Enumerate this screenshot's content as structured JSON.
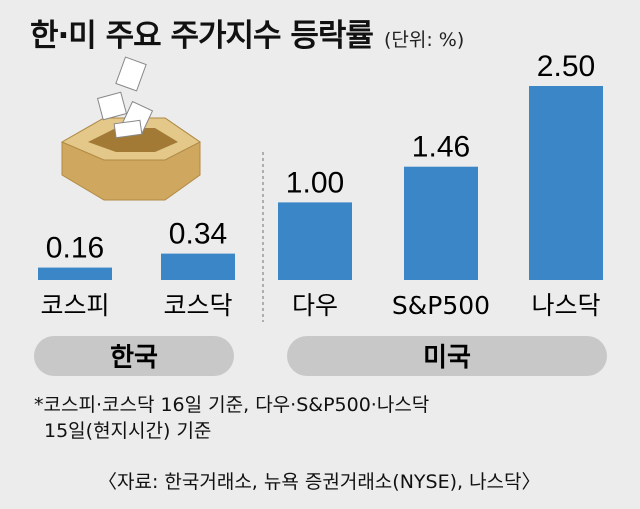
{
  "header": {
    "title": "한·미 주요 주가지수 등락률",
    "unit": "(단위: %)"
  },
  "chart_data": {
    "type": "bar",
    "categories": [
      "코스피",
      "코스닥",
      "다우",
      "S&P500",
      "나스닥"
    ],
    "values": [
      0.16,
      0.34,
      1.0,
      1.46,
      2.5
    ],
    "value_labels": [
      "0.16",
      "0.34",
      "1.00",
      "1.46",
      "2.50"
    ],
    "groups": [
      {
        "label": "한국",
        "categories": [
          "코스피",
          "코스닥"
        ]
      },
      {
        "label": "미국",
        "categories": [
          "다우",
          "S&P500",
          "나스닥"
        ]
      }
    ],
    "title": "한·미 주요 주가지수 등락률",
    "ylim": [
      0,
      2.5
    ],
    "grid": false,
    "bar_color": "#3b86c7"
  },
  "notes": {
    "line1": "*코스피·코스닥 16일 기준, 다우·S&P500·나스닥",
    "line2": "15일(현지시간) 기준"
  },
  "source": "〈자료: 한국거래소, 뉴욕 증권거래소(NYSE), 나스닥〉",
  "colors": {
    "background": "#ececec",
    "bar": "#3b86c7",
    "group_pill": "#c8c8c8",
    "divider": "#9a9a9a",
    "box_top": "#e3c88a",
    "box_side": "#cfa75e"
  },
  "illustration": {
    "icon": "ballot-box-with-papers-icon"
  }
}
